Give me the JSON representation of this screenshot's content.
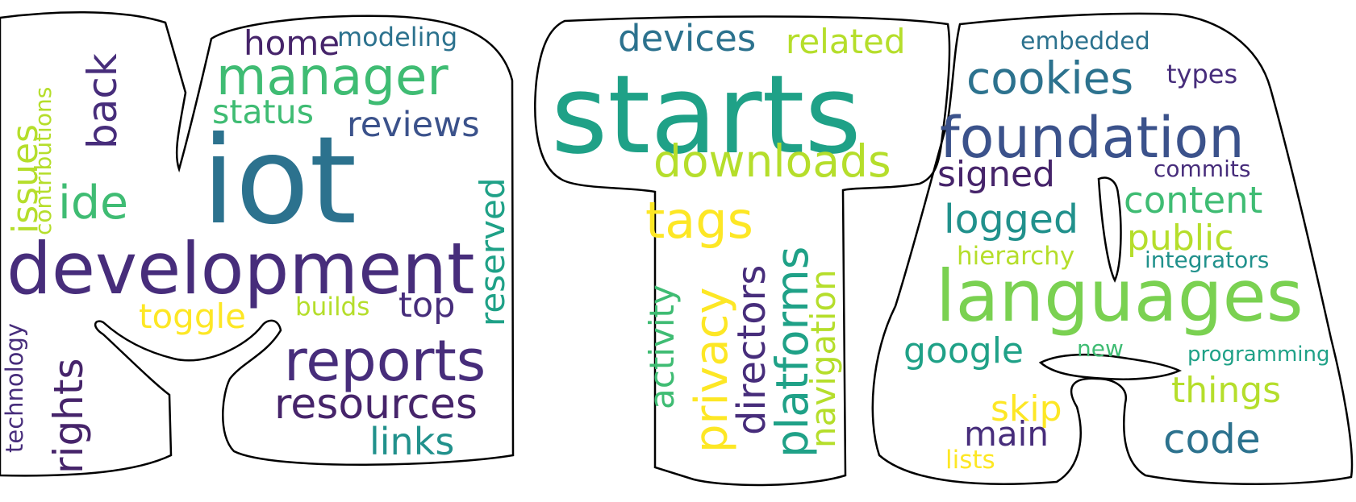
{
  "words": {
    "iot": "iot",
    "development": "development",
    "manager": "manager",
    "home": "home",
    "modeling": "modeling",
    "status": "status",
    "reviews": "reviews",
    "ide": "ide",
    "back": "back",
    "issues": "issues",
    "contributions": "contributions",
    "reserved": "reserved",
    "toggle": "toggle",
    "builds": "builds",
    "top": "top",
    "reports": "reports",
    "resources": "resources",
    "links": "links",
    "rights": "rights",
    "technology": "technology",
    "starts": "starts",
    "devices": "devices",
    "related": "related",
    "downloads": "downloads",
    "tags": "tags",
    "activity": "activity",
    "privacy": "privacy",
    "directors": "directors",
    "platforms": "platforms",
    "navigation": "navigation",
    "embedded": "embedded",
    "cookies": "cookies",
    "types": "types",
    "foundation": "foundation",
    "signed": "signed",
    "commits": "commits",
    "content": "content",
    "logged": "logged",
    "public": "public",
    "hierarchy": "hierarchy",
    "integrators": "integrators",
    "languages": "languages",
    "google": "google",
    "new": "new",
    "programming": "programming",
    "things": "things",
    "skip": "skip",
    "main": "main",
    "code": "code",
    "lists": "lists"
  },
  "colors": {
    "dark_purple": "#46246a",
    "purple": "#472d7b",
    "indigo": "#3b528b",
    "blue_teal": "#2c728e",
    "teal": "#21918c",
    "sea_green": "#1fa187",
    "green": "#3fbc73",
    "light_green": "#7ad151",
    "yellow_green": "#b5de2b",
    "yellow": "#fde725",
    "outline": "#000000"
  }
}
